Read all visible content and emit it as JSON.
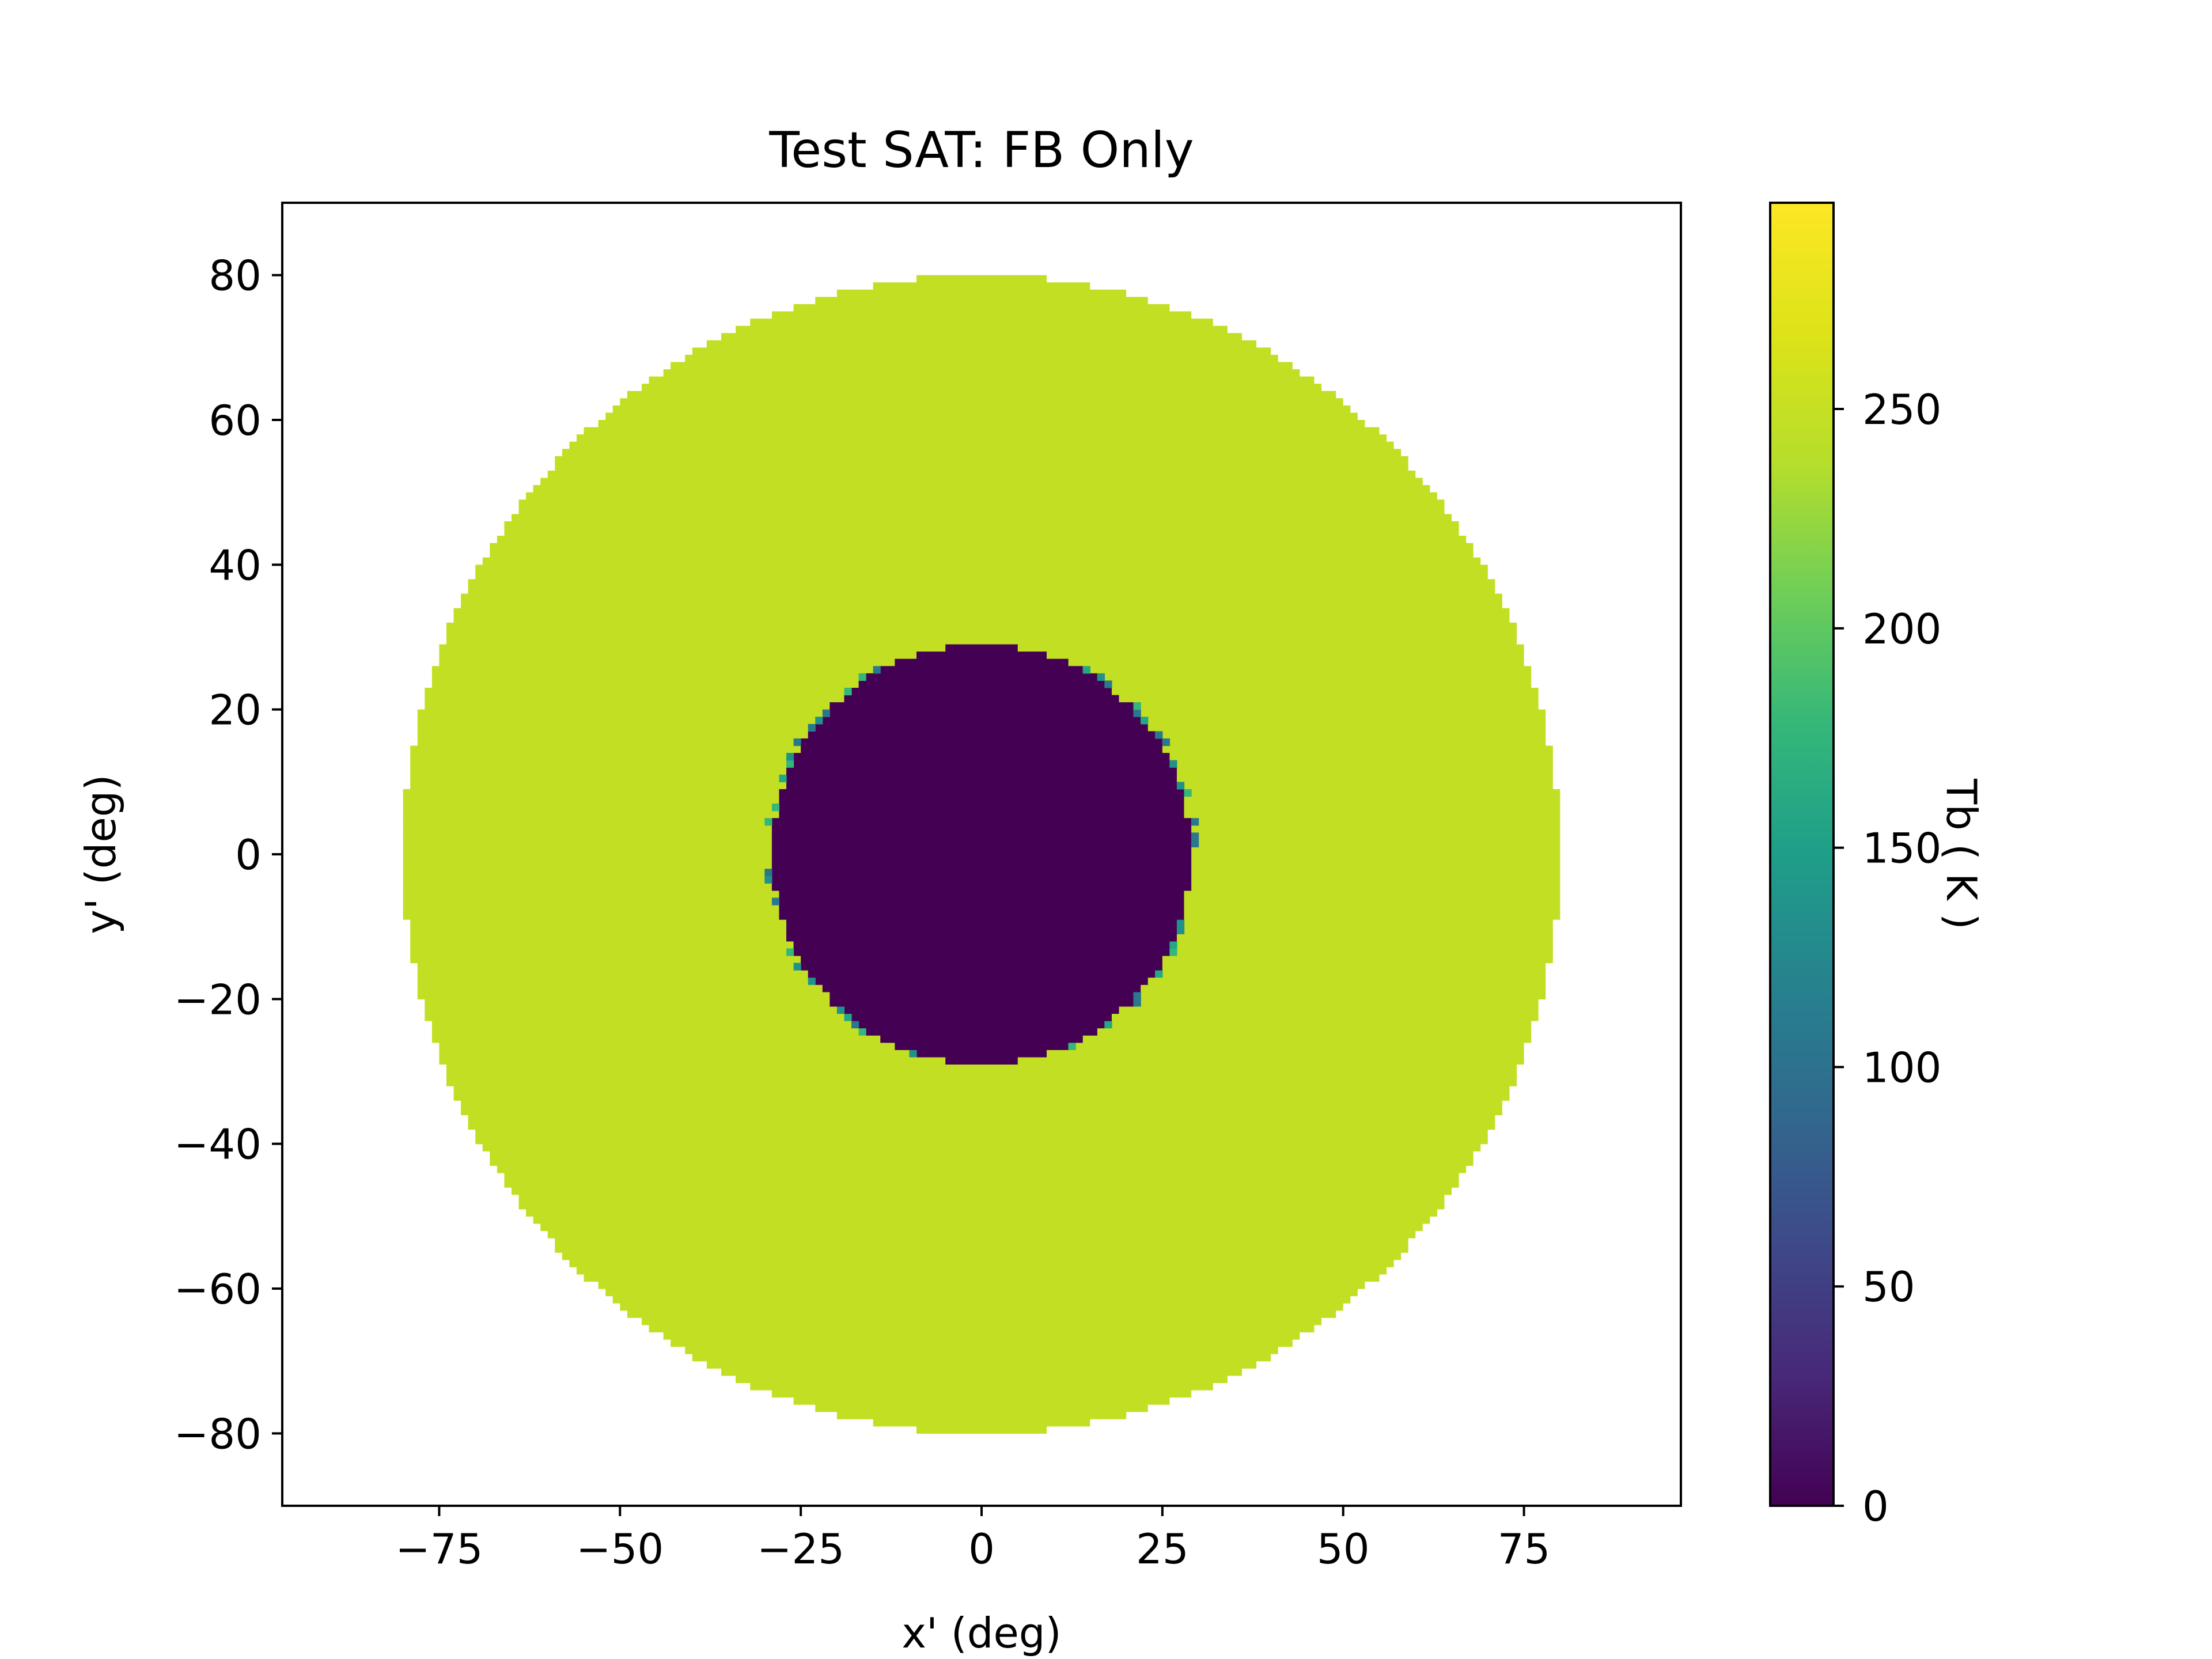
{
  "chart_data": {
    "type": "heatmap",
    "title": "Test SAT: FB Only",
    "xlabel": "x' (deg)",
    "ylabel": "y' (deg)",
    "xlim": [
      -96.7,
      96.7
    ],
    "ylim": [
      -90,
      90
    ],
    "x_ticks": [
      -75,
      -50,
      -25,
      0,
      25,
      50,
      75
    ],
    "y_ticks": [
      -80,
      -60,
      -40,
      -20,
      0,
      20,
      40,
      60,
      80
    ],
    "x_tick_labels": [
      "−75",
      "−50",
      "−25",
      "0",
      "25",
      "50",
      "75"
    ],
    "y_tick_labels": [
      "−80",
      "−60",
      "−40",
      "−20",
      "0",
      "20",
      "40",
      "60",
      "80"
    ],
    "grid": false,
    "regions": [
      {
        "shape": "disk",
        "center": [
          0,
          0
        ],
        "radius": 80,
        "value": 260,
        "note": "outer ring"
      },
      {
        "shape": "disk",
        "center": [
          0,
          0
        ],
        "radius": 29,
        "value": 0,
        "note": "inner disk"
      }
    ],
    "pixel_step_deg": 1,
    "colorbar": {
      "label": "Tb ( K )",
      "colormap": "viridis",
      "range": [
        0,
        297
      ],
      "ticks": [
        0,
        50,
        100,
        150,
        200,
        250
      ],
      "tick_labels": [
        "0",
        "50",
        "100",
        "150",
        "200",
        "250"
      ]
    },
    "colors": {
      "ring": "#c2df23",
      "inner": "#440154",
      "edge_noise": [
        "#21918c",
        "#2a788e",
        "#22a884",
        "#35b779"
      ]
    }
  }
}
